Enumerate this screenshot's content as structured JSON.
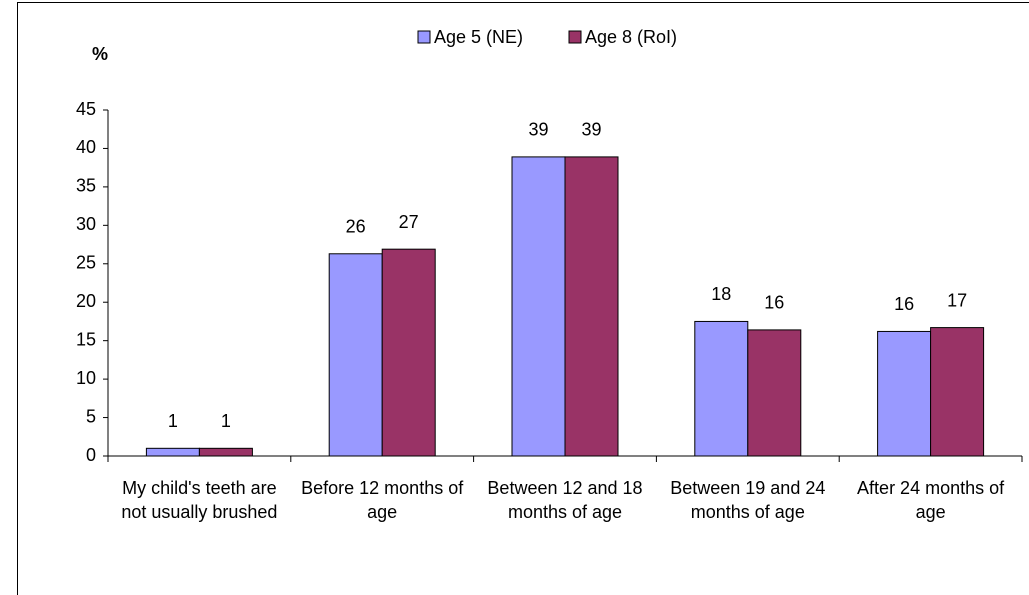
{
  "chart_data": {
    "type": "bar",
    "y_label": "%",
    "categories": [
      "My child's teeth are not usually brushed",
      "Before 12 months of age",
      "Between 12 and 18 months of age",
      "Between 19 and 24 months of age",
      "After 24 months of age"
    ],
    "series": [
      {
        "name": "Age 5 (NE)",
        "color": "#9999ff",
        "values": [
          1,
          26.3,
          38.9,
          17.5,
          16.2
        ],
        "value_labels": [
          "1",
          "26",
          "39",
          "18",
          "16"
        ]
      },
      {
        "name": "Age 8 (RoI)",
        "color": "#993366",
        "values": [
          1,
          26.9,
          38.9,
          16.4,
          16.7
        ],
        "value_labels": [
          "1",
          "27",
          "39",
          "16",
          "17"
        ]
      }
    ],
    "ylim": [
      0,
      45
    ],
    "yticks": [
      0,
      5,
      10,
      15,
      20,
      25,
      30,
      35,
      40,
      45
    ],
    "grid": false,
    "legend": "top"
  }
}
